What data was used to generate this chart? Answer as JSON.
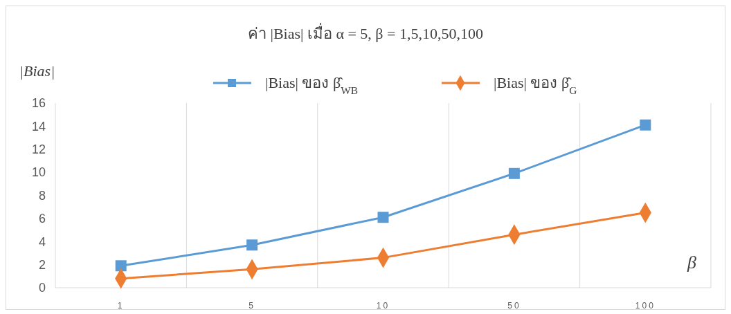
{
  "chart_data": {
    "type": "line",
    "title": "ค่า |Bias| เมื่อ α = 5, β = 1,5,10,50,100",
    "ylabel": "|Bias|",
    "xlabel": "β",
    "categories": [
      "1",
      "5",
      "10",
      "50",
      "100"
    ],
    "series": [
      {
        "name": "|Bias| ของ β̂$_{WB}$",
        "color": "#5b9bd5",
        "marker": "square",
        "values": [
          1.9,
          3.7,
          6.1,
          9.9,
          14.1
        ]
      },
      {
        "name": "|Bias| ของ β̂$_{G}$",
        "color": "#ed7d31",
        "marker": "diamond",
        "values": [
          0.8,
          1.6,
          2.6,
          4.6,
          6.5
        ]
      }
    ],
    "ylim": [
      0,
      16
    ],
    "yticks": [
      0,
      2,
      4,
      6,
      8,
      10,
      12,
      14,
      16
    ],
    "grid": "x",
    "legend": "top",
    "line_style": "solid"
  }
}
